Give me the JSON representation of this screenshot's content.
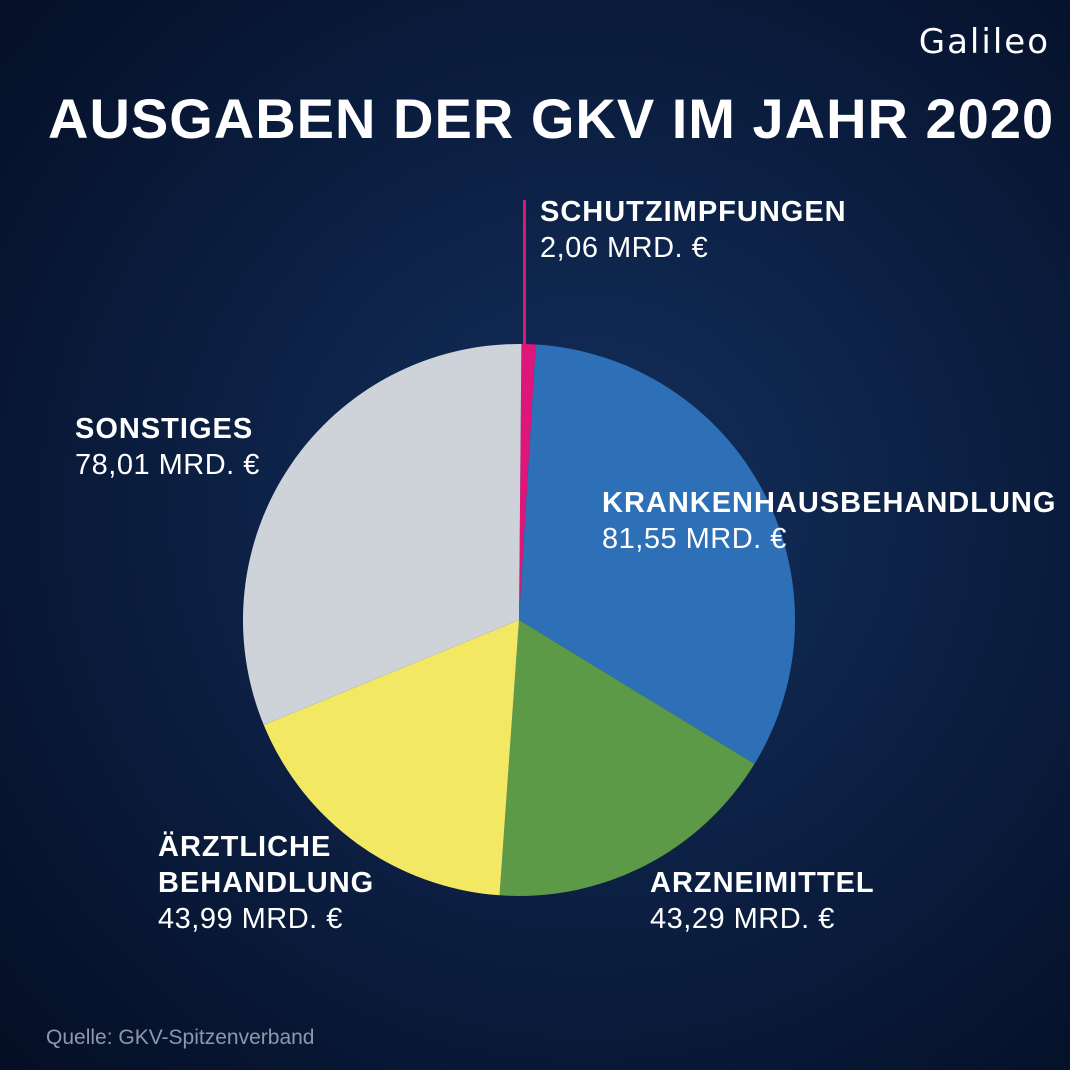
{
  "brand": {
    "logo_text": "Galileo"
  },
  "title": "AUSGABEN DER GKV IM JAHR 2020",
  "source": "Quelle: GKV-Spitzenverband",
  "chart_data": {
    "type": "pie",
    "title": "AUSGABEN DER GKV IM JAHR 2020",
    "unit": "MRD. €",
    "slices": [
      {
        "name": "SCHUTZIMPFUNGEN",
        "name_lines": [
          "SCHUTZIMPFUNGEN"
        ],
        "value": 2.06,
        "value_label": "2,06 MRD. €",
        "color": "#e0157a"
      },
      {
        "name": "KRANKENHAUSBEHANDLUNG",
        "name_lines": [
          "KRANKENHAUSBEHANDLUNG"
        ],
        "value": 81.55,
        "value_label": "81,55 MRD. €",
        "color": "#2e70b7"
      },
      {
        "name": "ARZNEIMITTEL",
        "name_lines": [
          "ARZNEIMITTEL"
        ],
        "value": 43.29,
        "value_label": "43,29 MRD. €",
        "color": "#5c9a47"
      },
      {
        "name": "ÄRZTLICHE BEHANDLUNG",
        "name_lines": [
          "ÄRZTLICHE",
          "BEHANDLUNG"
        ],
        "value": 43.99,
        "value_label": "43,99 MRD. €",
        "color": "#f2e863"
      },
      {
        "name": "SONSTIGES",
        "name_lines": [
          "SONSTIGES"
        ],
        "value": 78.01,
        "value_label": "78,01 MRD. €",
        "color": "#cdd3d9"
      }
    ]
  }
}
